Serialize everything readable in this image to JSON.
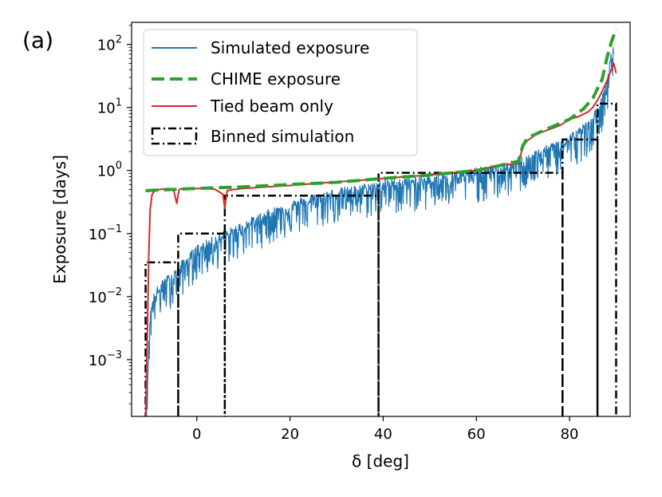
{
  "chart_data": {
    "type": "line",
    "panel_label": "(a)",
    "xlabel": "δ [deg]",
    "ylabel": "Exposure [days]",
    "xlim": [
      -14,
      93
    ],
    "ylim_log10": [
      -3.9,
      2.35
    ],
    "yscale": "log",
    "x_ticks": [
      {
        "value": 0,
        "label": "0"
      },
      {
        "value": 20,
        "label": "20"
      },
      {
        "value": 40,
        "label": "40"
      },
      {
        "value": 60,
        "label": "60"
      },
      {
        "value": 80,
        "label": "80"
      }
    ],
    "y_ticks": [
      {
        "exp": -3,
        "base": "10",
        "sup": "−3"
      },
      {
        "exp": -2,
        "base": "10",
        "sup": "−2"
      },
      {
        "exp": -1,
        "base": "10",
        "sup": "−1"
      },
      {
        "exp": 0,
        "base": "10",
        "sup": "0"
      },
      {
        "exp": 1,
        "base": "10",
        "sup": "1"
      },
      {
        "exp": 2,
        "base": "10",
        "sup": "2"
      }
    ],
    "legend": {
      "placement": "upper-left",
      "entries": [
        {
          "label": "Simulated exposure",
          "style": "solid",
          "color": "#1f77b4"
        },
        {
          "label": "CHIME exposure",
          "style": "dashed",
          "color": "#2ca02c"
        },
        {
          "label": "Tied beam only",
          "style": "solid",
          "color": "#d62728"
        },
        {
          "label": "Binned simulation",
          "style": "dashdot-box",
          "color": "#000000"
        }
      ]
    },
    "series": [
      {
        "name": "Simulated exposure",
        "color": "#1f77b4",
        "style": "noisy",
        "x": [
          -11,
          -10,
          -9,
          -7,
          -5,
          -4,
          -2,
          0,
          2,
          5,
          8,
          10,
          15,
          20,
          25,
          30,
          35,
          40,
          45,
          50,
          55,
          60,
          65,
          68,
          70,
          72,
          75,
          78,
          80,
          82,
          84,
          85,
          86,
          87,
          88,
          88.5,
          89,
          89.5
        ],
        "y": [
          8e-05,
          0.005,
          0.01,
          0.015,
          0.02,
          0.025,
          0.035,
          0.05,
          0.06,
          0.08,
          0.1,
          0.12,
          0.18,
          0.25,
          0.32,
          0.4,
          0.45,
          0.55,
          0.6,
          0.65,
          0.75,
          0.85,
          0.95,
          1.1,
          1.3,
          1.5,
          1.9,
          2.4,
          2.9,
          3.7,
          4.8,
          6,
          8,
          12,
          20,
          35,
          60,
          90
        ],
        "noise_down_log10": 0.45
      },
      {
        "name": "CHIME exposure",
        "color": "#2ca02c",
        "style": "dashed",
        "x": [
          -11,
          -5,
          0,
          10,
          20,
          30,
          40,
          50,
          60,
          65,
          69,
          70,
          71,
          75,
          80,
          83,
          85,
          87,
          88,
          89,
          90
        ],
        "y": [
          0.48,
          0.5,
          0.52,
          0.55,
          0.6,
          0.65,
          0.75,
          0.85,
          1.0,
          1.2,
          1.4,
          2.5,
          3.3,
          4.5,
          6.5,
          9.5,
          14,
          28,
          60,
          110,
          175
        ]
      },
      {
        "name": "Tied beam only",
        "color": "#d62728",
        "style": "solid",
        "x": [
          -11,
          -10.6,
          -10.3,
          -10,
          -9.6,
          -9,
          -8,
          -6,
          -5,
          -4.3,
          -3.8,
          -3,
          -1,
          0,
          2,
          4,
          5.6,
          6,
          6.5,
          8,
          10,
          15,
          20,
          25,
          30,
          35,
          40,
          45,
          50,
          55,
          60,
          65,
          69,
          70,
          71,
          73,
          75,
          78,
          80,
          82,
          84,
          85,
          86,
          87,
          88,
          89,
          89.5,
          90
        ],
        "y": [
          0.0001,
          0.003,
          0.05,
          0.25,
          0.42,
          0.48,
          0.5,
          0.52,
          0.5,
          0.3,
          0.5,
          0.52,
          0.5,
          0.52,
          0.52,
          0.5,
          0.42,
          0.25,
          0.48,
          0.5,
          0.52,
          0.55,
          0.58,
          0.62,
          0.66,
          0.7,
          0.75,
          0.8,
          0.85,
          0.92,
          1.0,
          1.2,
          1.3,
          2.4,
          3.0,
          3.8,
          4.3,
          5.2,
          6.5,
          7.2,
          8.5,
          10,
          13,
          18,
          26,
          40,
          50,
          35
        ]
      }
    ],
    "binned_simulation": {
      "name": "Binned simulation",
      "color": "#000000",
      "edges": [
        -11,
        -4,
        6,
        39,
        78.5,
        86,
        90
      ],
      "values": [
        0.035,
        0.1,
        0.4,
        0.92,
        3.1,
        11.5
      ]
    }
  }
}
